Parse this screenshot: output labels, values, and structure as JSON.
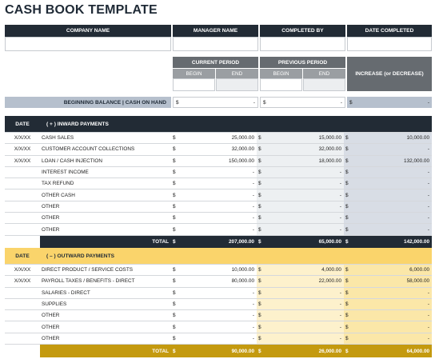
{
  "title": "CASH BOOK TEMPLATE",
  "info_headers": [
    "COMPANY NAME",
    "MANAGER NAME",
    "COMPLETED BY",
    "DATE COMPLETED"
  ],
  "periods": {
    "current": "CURRENT PERIOD",
    "previous": "PREVIOUS PERIOD",
    "begin": "BEGIN",
    "end": "END",
    "change": "INCREASE (or DECREASE)"
  },
  "balance": {
    "label": "BEGINNING BALANCE | CASH ON HAND",
    "currency": "$",
    "dash": "-"
  },
  "inward": {
    "date_header": "DATE",
    "title": "( + )  INWARD PAYMENTS",
    "rows": [
      {
        "date": "X/X/XX",
        "label": "CASH SALES",
        "current": "25,000.00",
        "previous": "15,000.00",
        "change": "10,000.00"
      },
      {
        "date": "X/X/XX",
        "label": "CUSTOMER ACCOUNT COLLECTIONS",
        "current": "32,000.00",
        "previous": "32,000.00",
        "change": "-"
      },
      {
        "date": "X/X/XX",
        "label": "LOAN / CASH INJECTION",
        "current": "150,000.00",
        "previous": "18,000.00",
        "change": "132,000.00"
      },
      {
        "date": "",
        "label": "INTEREST INCOME",
        "current": "-",
        "previous": "-",
        "change": "-"
      },
      {
        "date": "",
        "label": "TAX REFUND",
        "current": "-",
        "previous": "-",
        "change": "-"
      },
      {
        "date": "",
        "label": "OTHER CASH",
        "current": "-",
        "previous": "-",
        "change": "-"
      },
      {
        "date": "",
        "label": "OTHER",
        "current": "-",
        "previous": "-",
        "change": "-"
      },
      {
        "date": "",
        "label": "OTHER",
        "current": "-",
        "previous": "-",
        "change": "-"
      },
      {
        "date": "",
        "label": "OTHER",
        "current": "-",
        "previous": "-",
        "change": "-"
      }
    ],
    "total_label": "TOTAL",
    "total": {
      "current": "207,000.00",
      "previous": "65,000.00",
      "change": "142,000.00"
    }
  },
  "outward": {
    "date_header": "DATE",
    "title": "( – )  OUTWARD PAYMENTS",
    "rows": [
      {
        "date": "X/X/XX",
        "label": "DIRECT PRODUCT / SERVICE COSTS",
        "current": "10,000.00",
        "previous": "4,000.00",
        "change": "6,000.00"
      },
      {
        "date": "X/X/XX",
        "label": "PAYROLL TAXES / BENEFITS - DIRECT",
        "current": "80,000.00",
        "previous": "22,000.00",
        "change": "58,000.00"
      },
      {
        "date": "",
        "label": "SALARIES - DIRECT",
        "current": "-",
        "previous": "-",
        "change": "-"
      },
      {
        "date": "",
        "label": "SUPPLIES",
        "current": "-",
        "previous": "-",
        "change": "-"
      },
      {
        "date": "",
        "label": "OTHER",
        "current": "-",
        "previous": "-",
        "change": "-"
      },
      {
        "date": "",
        "label": "OTHER",
        "current": "-",
        "previous": "-",
        "change": "-"
      },
      {
        "date": "",
        "label": "OTHER",
        "current": "-",
        "previous": "-",
        "change": "-"
      }
    ],
    "total_label": "TOTAL",
    "total": {
      "current": "90,000.00",
      "previous": "26,000.00",
      "change": "64,000.00"
    }
  }
}
